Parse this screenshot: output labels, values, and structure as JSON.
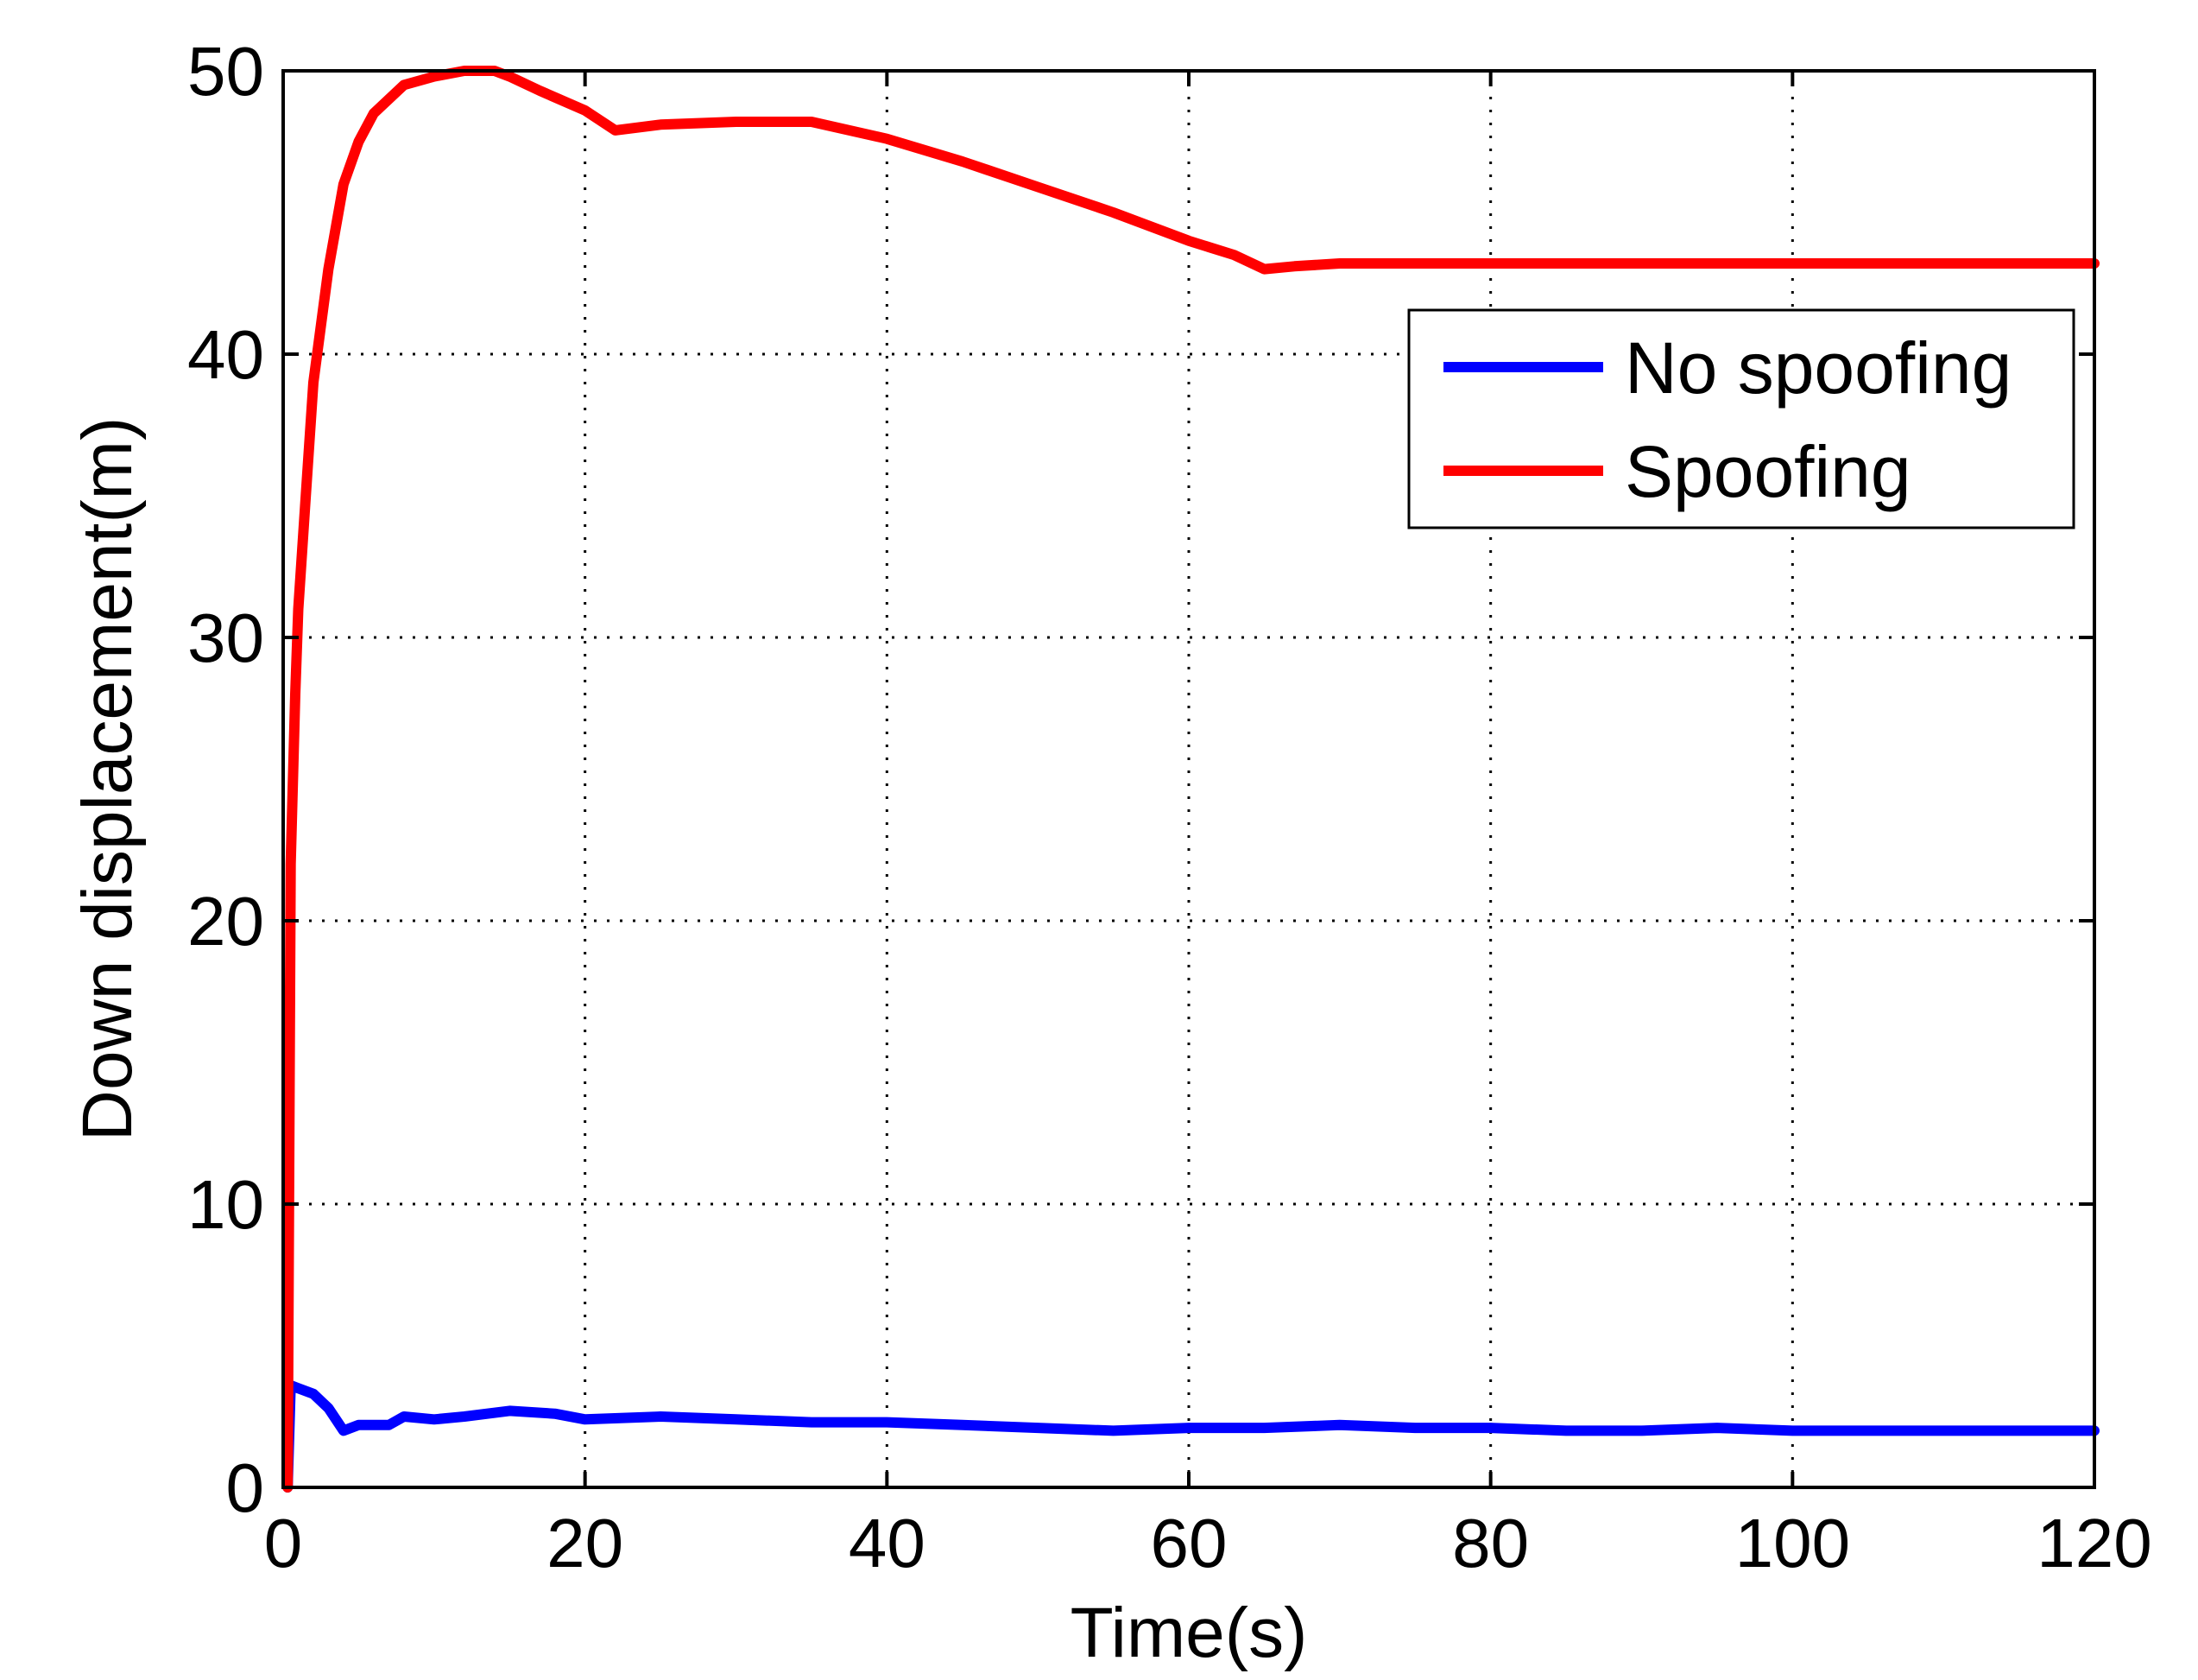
{
  "chart_data": {
    "type": "line",
    "title": "",
    "xlabel": "Time(s)",
    "ylabel": "Down displacement(m)",
    "xlim": [
      0,
      120
    ],
    "ylim": [
      0,
      50
    ],
    "xticks": [
      0,
      20,
      40,
      60,
      80,
      100,
      120
    ],
    "yticks": [
      0,
      10,
      20,
      30,
      40,
      50
    ],
    "grid": true,
    "legend_position": "top-right",
    "series": [
      {
        "name": "No spoofing",
        "color": "#0000ff",
        "x": [
          0.3,
          0.5,
          1,
          2,
          3,
          4,
          5,
          7,
          8,
          10,
          12,
          15,
          18,
          20,
          25,
          30,
          35,
          40,
          45,
          50,
          55,
          60,
          65,
          70,
          75,
          80,
          85,
          90,
          95,
          100,
          105,
          110,
          115,
          120
        ],
        "y": [
          0,
          3.6,
          3.5,
          3.3,
          2.8,
          2.0,
          2.2,
          2.2,
          2.5,
          2.4,
          2.5,
          2.7,
          2.6,
          2.4,
          2.5,
          2.4,
          2.3,
          2.3,
          2.2,
          2.1,
          2.0,
          2.1,
          2.1,
          2.2,
          2.1,
          2.1,
          2.0,
          2.0,
          2.1,
          2.0,
          2.0,
          2.0,
          2.0,
          2.0
        ]
      },
      {
        "name": "Spoofing",
        "color": "#ff0000",
        "x": [
          0.3,
          0.5,
          0.8,
          1,
          1.5,
          2,
          3,
          4,
          5,
          6,
          8,
          10,
          12,
          14,
          15,
          17,
          20,
          22,
          25,
          30,
          35,
          40,
          45,
          50,
          55,
          60,
          63,
          65,
          67,
          70,
          80,
          90,
          100,
          110,
          120
        ],
        "y": [
          0,
          22,
          28,
          31,
          35,
          39,
          43,
          46,
          47.5,
          48.5,
          49.5,
          49.8,
          50,
          50,
          49.8,
          49.3,
          48.6,
          47.9,
          48.1,
          48.2,
          48.2,
          47.6,
          46.8,
          45.9,
          45,
          44,
          43.5,
          43,
          43.1,
          43.2,
          43.2,
          43.2,
          43.2,
          43.2,
          43.2
        ]
      }
    ]
  }
}
